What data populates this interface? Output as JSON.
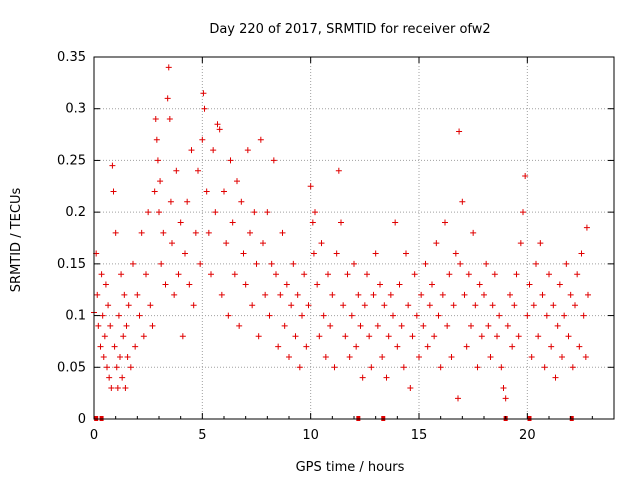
{
  "chart_data": {
    "type": "scatter",
    "title": "Day 220 of 2017, SRMTID for receiver ofw2",
    "xlabel": "GPS time / hours",
    "ylabel": "SRMTID / TECUs",
    "xlim": [
      0,
      24
    ],
    "ylim": [
      0,
      0.35
    ],
    "xticks": [
      0,
      5,
      10,
      15,
      20
    ],
    "xtick_labels": [
      "0",
      "5",
      "10",
      "15",
      "20"
    ],
    "yticks": [
      0,
      0.05,
      0.1,
      0.15,
      0.2,
      0.25,
      0.3,
      0.35
    ],
    "ytick_labels": [
      "0",
      "0.05",
      "0.1",
      "0.15",
      "0.2",
      "0.25",
      "0.3",
      "0.35"
    ],
    "grid": true,
    "series": [
      {
        "name": "SRMTID",
        "color": "#e00000",
        "marker": "plus",
        "points": [
          [
            0.0,
            0.103
          ],
          [
            0.1,
            0.16
          ],
          [
            0.15,
            0.12
          ],
          [
            0.2,
            0.09
          ],
          [
            0.3,
            0.07
          ],
          [
            0.35,
            0.14
          ],
          [
            0.4,
            0.1
          ],
          [
            0.45,
            0.06
          ],
          [
            0.5,
            0.08
          ],
          [
            0.55,
            0.13
          ],
          [
            0.6,
            0.05
          ],
          [
            0.65,
            0.11
          ],
          [
            0.7,
            0.04
          ],
          [
            0.75,
            0.09
          ],
          [
            0.8,
            0.03
          ],
          [
            0.85,
            0.245
          ],
          [
            0.9,
            0.22
          ],
          [
            0.95,
            0.07
          ],
          [
            1.0,
            0.18
          ],
          [
            1.05,
            0.05
          ],
          [
            1.1,
            0.03
          ],
          [
            1.15,
            0.1
          ],
          [
            1.2,
            0.06
          ],
          [
            1.25,
            0.14
          ],
          [
            1.3,
            0.04
          ],
          [
            1.35,
            0.08
          ],
          [
            1.4,
            0.12
          ],
          [
            1.45,
            0.03
          ],
          [
            1.5,
            0.09
          ],
          [
            1.55,
            0.06
          ],
          [
            1.6,
            0.11
          ],
          [
            1.7,
            0.05
          ],
          [
            1.8,
            0.15
          ],
          [
            1.9,
            0.07
          ],
          [
            2.0,
            0.12
          ],
          [
            2.1,
            0.1
          ],
          [
            2.2,
            0.18
          ],
          [
            2.3,
            0.08
          ],
          [
            2.4,
            0.14
          ],
          [
            2.5,
            0.2
          ],
          [
            2.6,
            0.11
          ],
          [
            2.7,
            0.09
          ],
          [
            2.8,
            0.22
          ],
          [
            2.85,
            0.29
          ],
          [
            2.9,
            0.27
          ],
          [
            2.95,
            0.25
          ],
          [
            3.0,
            0.2
          ],
          [
            3.05,
            0.23
          ],
          [
            3.1,
            0.15
          ],
          [
            3.2,
            0.18
          ],
          [
            3.3,
            0.13
          ],
          [
            3.4,
            0.31
          ],
          [
            3.45,
            0.34
          ],
          [
            3.5,
            0.29
          ],
          [
            3.55,
            0.21
          ],
          [
            3.6,
            0.17
          ],
          [
            3.7,
            0.12
          ],
          [
            3.8,
            0.24
          ],
          [
            3.9,
            0.14
          ],
          [
            4.0,
            0.19
          ],
          [
            4.1,
            0.08
          ],
          [
            4.2,
            0.16
          ],
          [
            4.3,
            0.21
          ],
          [
            4.4,
            0.13
          ],
          [
            4.5,
            0.26
          ],
          [
            4.6,
            0.11
          ],
          [
            4.7,
            0.18
          ],
          [
            4.8,
            0.24
          ],
          [
            4.9,
            0.15
          ],
          [
            5.0,
            0.27
          ],
          [
            5.05,
            0.315
          ],
          [
            5.1,
            0.3
          ],
          [
            5.2,
            0.22
          ],
          [
            5.3,
            0.18
          ],
          [
            5.4,
            0.14
          ],
          [
            5.5,
            0.26
          ],
          [
            5.6,
            0.2
          ],
          [
            5.7,
            0.285
          ],
          [
            5.8,
            0.28
          ],
          [
            5.9,
            0.12
          ],
          [
            6.0,
            0.22
          ],
          [
            6.1,
            0.17
          ],
          [
            6.2,
            0.1
          ],
          [
            6.3,
            0.25
          ],
          [
            6.4,
            0.19
          ],
          [
            6.5,
            0.14
          ],
          [
            6.6,
            0.23
          ],
          [
            6.7,
            0.09
          ],
          [
            6.8,
            0.21
          ],
          [
            6.9,
            0.16
          ],
          [
            7.0,
            0.13
          ],
          [
            7.1,
            0.26
          ],
          [
            7.2,
            0.18
          ],
          [
            7.3,
            0.11
          ],
          [
            7.4,
            0.2
          ],
          [
            7.5,
            0.15
          ],
          [
            7.6,
            0.08
          ],
          [
            7.7,
            0.27
          ],
          [
            7.8,
            0.17
          ],
          [
            7.9,
            0.12
          ],
          [
            8.0,
            0.2
          ],
          [
            8.1,
            0.1
          ],
          [
            8.2,
            0.15
          ],
          [
            8.3,
            0.25
          ],
          [
            8.4,
            0.14
          ],
          [
            8.5,
            0.07
          ],
          [
            8.6,
            0.12
          ],
          [
            8.7,
            0.18
          ],
          [
            8.8,
            0.09
          ],
          [
            8.9,
            0.13
          ],
          [
            9.0,
            0.06
          ],
          [
            9.1,
            0.11
          ],
          [
            9.2,
            0.15
          ],
          [
            9.3,
            0.08
          ],
          [
            9.4,
            0.12
          ],
          [
            9.5,
            0.05
          ],
          [
            9.6,
            0.1
          ],
          [
            9.7,
            0.14
          ],
          [
            9.8,
            0.07
          ],
          [
            9.9,
            0.11
          ],
          [
            10.0,
            0.225
          ],
          [
            10.1,
            0.19
          ],
          [
            10.15,
            0.16
          ],
          [
            10.2,
            0.2
          ],
          [
            10.3,
            0.13
          ],
          [
            10.4,
            0.08
          ],
          [
            10.5,
            0.17
          ],
          [
            10.6,
            0.1
          ],
          [
            10.7,
            0.06
          ],
          [
            10.8,
            0.14
          ],
          [
            10.9,
            0.09
          ],
          [
            11.0,
            0.12
          ],
          [
            11.1,
            0.05
          ],
          [
            11.2,
            0.16
          ],
          [
            11.3,
            0.24
          ],
          [
            11.4,
            0.19
          ],
          [
            11.5,
            0.11
          ],
          [
            11.6,
            0.08
          ],
          [
            11.7,
            0.14
          ],
          [
            11.8,
            0.06
          ],
          [
            11.9,
            0.1
          ],
          [
            12.0,
            0.15
          ],
          [
            12.1,
            0.07
          ],
          [
            12.2,
            0.12
          ],
          [
            12.3,
            0.09
          ],
          [
            12.4,
            0.04
          ],
          [
            12.5,
            0.11
          ],
          [
            12.6,
            0.14
          ],
          [
            12.7,
            0.08
          ],
          [
            12.8,
            0.05
          ],
          [
            12.9,
            0.12
          ],
          [
            13.0,
            0.16
          ],
          [
            13.1,
            0.09
          ],
          [
            13.2,
            0.13
          ],
          [
            13.3,
            0.06
          ],
          [
            13.4,
            0.11
          ],
          [
            13.5,
            0.04
          ],
          [
            13.6,
            0.08
          ],
          [
            13.7,
            0.12
          ],
          [
            13.8,
            0.1
          ],
          [
            13.9,
            0.19
          ],
          [
            14.0,
            0.07
          ],
          [
            14.1,
            0.13
          ],
          [
            14.2,
            0.09
          ],
          [
            14.3,
            0.05
          ],
          [
            14.4,
            0.16
          ],
          [
            14.5,
            0.11
          ],
          [
            14.6,
            0.03
          ],
          [
            14.7,
            0.08
          ],
          [
            14.8,
            0.14
          ],
          [
            14.9,
            0.1
          ],
          [
            15.0,
            0.06
          ],
          [
            15.1,
            0.12
          ],
          [
            15.2,
            0.09
          ],
          [
            15.3,
            0.15
          ],
          [
            15.4,
            0.07
          ],
          [
            15.5,
            0.11
          ],
          [
            15.6,
            0.13
          ],
          [
            15.7,
            0.08
          ],
          [
            15.8,
            0.17
          ],
          [
            15.9,
            0.1
          ],
          [
            16.0,
            0.05
          ],
          [
            16.1,
            0.12
          ],
          [
            16.2,
            0.19
          ],
          [
            16.3,
            0.09
          ],
          [
            16.4,
            0.14
          ],
          [
            16.5,
            0.06
          ],
          [
            16.6,
            0.11
          ],
          [
            16.7,
            0.16
          ],
          [
            16.8,
            0.02
          ],
          [
            16.85,
            0.278
          ],
          [
            16.9,
            0.15
          ],
          [
            17.0,
            0.21
          ],
          [
            17.1,
            0.12
          ],
          [
            17.2,
            0.07
          ],
          [
            17.3,
            0.14
          ],
          [
            17.4,
            0.09
          ],
          [
            17.5,
            0.18
          ],
          [
            17.6,
            0.11
          ],
          [
            17.7,
            0.05
          ],
          [
            17.8,
            0.13
          ],
          [
            17.9,
            0.08
          ],
          [
            18.0,
            0.12
          ],
          [
            18.1,
            0.15
          ],
          [
            18.2,
            0.09
          ],
          [
            18.3,
            0.06
          ],
          [
            18.4,
            0.11
          ],
          [
            18.5,
            0.14
          ],
          [
            18.6,
            0.08
          ],
          [
            18.7,
            0.1
          ],
          [
            18.8,
            0.05
          ],
          [
            18.9,
            0.03
          ],
          [
            19.0,
            0.02
          ],
          [
            19.1,
            0.09
          ],
          [
            19.2,
            0.12
          ],
          [
            19.3,
            0.07
          ],
          [
            19.4,
            0.11
          ],
          [
            19.5,
            0.14
          ],
          [
            19.6,
            0.08
          ],
          [
            19.7,
            0.17
          ],
          [
            19.8,
            0.2
          ],
          [
            19.9,
            0.235
          ],
          [
            20.0,
            0.1
          ],
          [
            20.1,
            0.13
          ],
          [
            20.2,
            0.06
          ],
          [
            20.3,
            0.11
          ],
          [
            20.4,
            0.15
          ],
          [
            20.5,
            0.08
          ],
          [
            20.6,
            0.17
          ],
          [
            20.7,
            0.12
          ],
          [
            20.8,
            0.05
          ],
          [
            20.9,
            0.1
          ],
          [
            21.0,
            0.14
          ],
          [
            21.1,
            0.07
          ],
          [
            21.2,
            0.11
          ],
          [
            21.3,
            0.04
          ],
          [
            21.4,
            0.09
          ],
          [
            21.5,
            0.13
          ],
          [
            21.6,
            0.06
          ],
          [
            21.7,
            0.1
          ],
          [
            21.8,
            0.15
          ],
          [
            21.9,
            0.08
          ],
          [
            22.0,
            0.12
          ],
          [
            22.1,
            0.05
          ],
          [
            22.2,
            0.11
          ],
          [
            22.3,
            0.14
          ],
          [
            22.4,
            0.07
          ],
          [
            22.5,
            0.16
          ],
          [
            22.6,
            0.1
          ],
          [
            22.7,
            0.06
          ],
          [
            22.75,
            0.185
          ],
          [
            22.8,
            0.12
          ]
        ]
      }
    ],
    "zero_markers_x": [
      0.1,
      0.35,
      12.2,
      13.35,
      19.0,
      20.1,
      22.05
    ]
  }
}
